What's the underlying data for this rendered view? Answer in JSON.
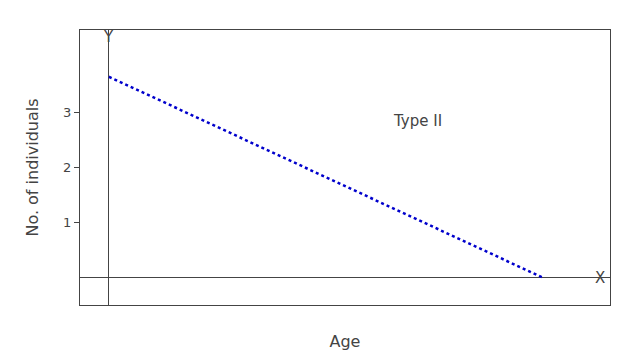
{
  "chart_data": {
    "type": "line",
    "x": [
      0,
      4.5
    ],
    "values": [
      3.65,
      0.0
    ],
    "color": "#0000cc",
    "line_style": "dotted",
    "xlabel": "Age",
    "ylabel": "No. of individuals",
    "xlim": [
      -0.3,
      5.2
    ],
    "ylim": [
      -0.5,
      4.5
    ],
    "xticks": [],
    "yticks": [
      1,
      2,
      3
    ],
    "tick_labels": "y",
    "grid": false,
    "annotations": [
      {
        "text": "Type II",
        "x": 3.2,
        "y": 2.85
      },
      {
        "text": "X",
        "x": 5.1,
        "y": 0
      },
      {
        "text": "Y",
        "x": 0,
        "y": 4.38
      }
    ]
  }
}
